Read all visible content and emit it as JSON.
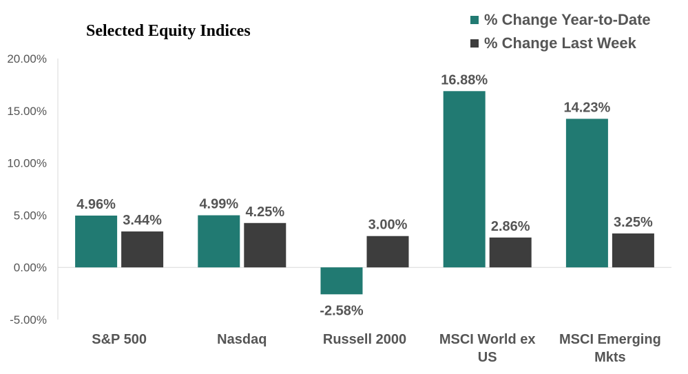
{
  "chart_data": {
    "type": "bar",
    "title": "Selected Equity Indices",
    "xlabel": "",
    "ylabel": "",
    "ylim": [
      -5,
      20
    ],
    "yticks": [
      -5,
      0,
      5,
      10,
      15,
      20
    ],
    "ytick_labels": [
      "-5.00%",
      "0.00%",
      "5.00%",
      "10.00%",
      "15.00%",
      "20.00%"
    ],
    "categories": [
      [
        "S&P 500"
      ],
      [
        "Nasdaq"
      ],
      [
        "Russell 2000"
      ],
      [
        "MSCI World ex",
        "US"
      ],
      [
        "MSCI Emerging",
        "Mkts"
      ]
    ],
    "series": [
      {
        "name": "% Change Year-to-Date",
        "color": "#217a72",
        "values": [
          4.96,
          4.99,
          -2.58,
          16.88,
          14.23
        ],
        "labels": [
          "4.96%",
          "4.99%",
          "-2.58%",
          "16.88%",
          "14.23%"
        ]
      },
      {
        "name": "% Change Last Week",
        "color": "#3d3d3d",
        "values": [
          3.44,
          4.25,
          3.0,
          2.86,
          3.25
        ],
        "labels": [
          "3.44%",
          "4.25%",
          "3.00%",
          "2.86%",
          "3.25%"
        ]
      }
    ],
    "grid": false,
    "legend_position": "top-right"
  }
}
